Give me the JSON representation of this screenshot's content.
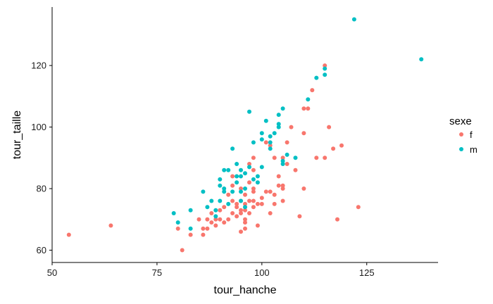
{
  "chart_data": {
    "type": "scatter",
    "title": "",
    "xlabel": "tour_hanche",
    "ylabel": "tour_taille",
    "xlim": [
      50,
      142
    ],
    "ylim": [
      56,
      139
    ],
    "x_ticks": [
      50,
      75,
      100,
      125
    ],
    "y_ticks": [
      60,
      80,
      100,
      120
    ],
    "grid": false,
    "legend": {
      "title": "sexe",
      "position": "right"
    },
    "series": [
      {
        "name": "f",
        "color": "#F8766D",
        "points": [
          [
            54,
            65
          ],
          [
            64,
            68
          ],
          [
            80,
            67
          ],
          [
            81,
            60
          ],
          [
            83,
            65
          ],
          [
            85,
            70
          ],
          [
            86,
            65
          ],
          [
            86,
            67
          ],
          [
            87,
            70
          ],
          [
            87,
            67
          ],
          [
            88,
            72
          ],
          [
            88,
            69
          ],
          [
            89,
            70
          ],
          [
            89,
            68
          ],
          [
            90,
            73
          ],
          [
            90,
            70
          ],
          [
            91,
            74
          ],
          [
            91,
            69
          ],
          [
            92,
            78
          ],
          [
            92,
            70
          ],
          [
            93,
            76
          ],
          [
            93,
            72
          ],
          [
            93,
            81
          ],
          [
            93,
            84
          ],
          [
            94,
            75
          ],
          [
            94,
            71
          ],
          [
            94,
            74
          ],
          [
            95,
            73
          ],
          [
            95,
            72
          ],
          [
            95,
            66
          ],
          [
            95,
            76
          ],
          [
            95,
            80
          ],
          [
            96,
            73
          ],
          [
            96,
            75
          ],
          [
            96,
            70
          ],
          [
            96,
            67
          ],
          [
            96,
            78
          ],
          [
            96,
            69
          ],
          [
            97,
            88
          ],
          [
            97,
            82
          ],
          [
            97,
            76
          ],
          [
            97,
            72
          ],
          [
            98,
            90
          ],
          [
            98,
            86
          ],
          [
            98,
            80
          ],
          [
            98,
            76
          ],
          [
            98,
            79
          ],
          [
            98,
            74
          ],
          [
            99,
            68
          ],
          [
            99,
            75
          ],
          [
            100,
            77
          ],
          [
            100,
            75
          ],
          [
            101,
            79
          ],
          [
            101,
            95
          ],
          [
            102,
            79
          ],
          [
            102,
            72
          ],
          [
            102,
            94
          ],
          [
            103,
            78
          ],
          [
            103,
            75
          ],
          [
            103,
            90
          ],
          [
            104,
            81
          ],
          [
            104,
            84
          ],
          [
            105,
            81
          ],
          [
            105,
            80
          ],
          [
            105,
            76
          ],
          [
            105,
            90
          ],
          [
            106,
            95
          ],
          [
            106,
            88
          ],
          [
            107,
            100
          ],
          [
            108,
            86
          ],
          [
            109,
            71
          ],
          [
            110,
            98
          ],
          [
            110,
            106
          ],
          [
            110,
            80
          ],
          [
            111,
            106
          ],
          [
            112,
            112
          ],
          [
            113,
            90
          ],
          [
            115,
            90
          ],
          [
            115,
            120
          ],
          [
            116,
            100
          ],
          [
            117,
            93
          ],
          [
            118,
            70
          ],
          [
            119,
            94
          ],
          [
            123,
            74
          ]
        ]
      },
      {
        "name": "m",
        "color": "#00BFC4",
        "points": [
          [
            79,
            72
          ],
          [
            80,
            69
          ],
          [
            83,
            67
          ],
          [
            83,
            73
          ],
          [
            86,
            79
          ],
          [
            87,
            74
          ],
          [
            88,
            76
          ],
          [
            89,
            71
          ],
          [
            89,
            73
          ],
          [
            90,
            83
          ],
          [
            90,
            81
          ],
          [
            90,
            76
          ],
          [
            91,
            80
          ],
          [
            91,
            79
          ],
          [
            91,
            86
          ],
          [
            92,
            86
          ],
          [
            92,
            75
          ],
          [
            93,
            93
          ],
          [
            93,
            79
          ],
          [
            94,
            84
          ],
          [
            94,
            82
          ],
          [
            94,
            88
          ],
          [
            95,
            86
          ],
          [
            95,
            84
          ],
          [
            95,
            76
          ],
          [
            95,
            79
          ],
          [
            96,
            85
          ],
          [
            96,
            80
          ],
          [
            96,
            74
          ],
          [
            97,
            105
          ],
          [
            97,
            87
          ],
          [
            98,
            83
          ],
          [
            98,
            95
          ],
          [
            99,
            84
          ],
          [
            99,
            82
          ],
          [
            100,
            98
          ],
          [
            100,
            96
          ],
          [
            100,
            87
          ],
          [
            101,
            102
          ],
          [
            102,
            95
          ],
          [
            102,
            93
          ],
          [
            102,
            97
          ],
          [
            103,
            98
          ],
          [
            104,
            100
          ],
          [
            104,
            101
          ],
          [
            104,
            104
          ],
          [
            105,
            106
          ],
          [
            105,
            89
          ],
          [
            105,
            88
          ],
          [
            106,
            91
          ],
          [
            108,
            90
          ],
          [
            111,
            109
          ],
          [
            113,
            116
          ],
          [
            115,
            117
          ],
          [
            115,
            119
          ],
          [
            122,
            135
          ],
          [
            138,
            122
          ]
        ]
      }
    ]
  }
}
